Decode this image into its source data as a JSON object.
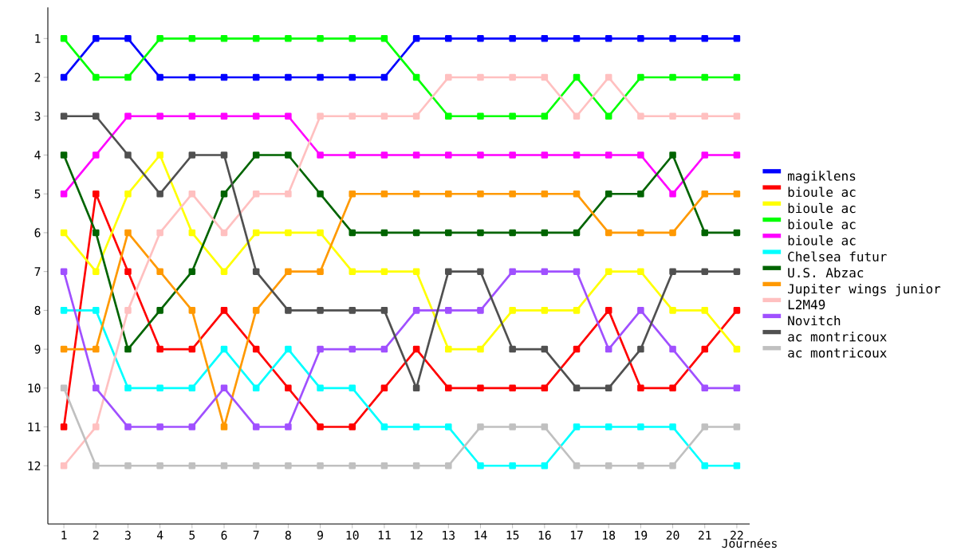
{
  "chart_data": {
    "type": "line",
    "xlabel": "Journées",
    "xlim": [
      0.5,
      22.4
    ],
    "ylim": [
      13.5,
      0.2
    ],
    "xticks": [
      1,
      2,
      3,
      4,
      5,
      6,
      7,
      8,
      9,
      10,
      11,
      12,
      13,
      14,
      15,
      16,
      17,
      18,
      19,
      20,
      21,
      22
    ],
    "yticks": [
      1,
      2,
      3,
      4,
      5,
      6,
      7,
      8,
      9,
      10,
      11,
      12
    ],
    "x": [
      1,
      2,
      3,
      4,
      5,
      6,
      7,
      8,
      9,
      10,
      11,
      12,
      13,
      14,
      15,
      16,
      17,
      18,
      19,
      20,
      21,
      22
    ],
    "marker": "square",
    "legend": "right",
    "grid": false,
    "series": [
      {
        "name": "magiklens",
        "color": "#0000ff",
        "values": [
          2,
          1,
          1,
          2,
          2,
          2,
          2,
          2,
          2,
          2,
          2,
          1,
          1,
          1,
          1,
          1,
          1,
          1,
          1,
          1,
          1,
          1
        ]
      },
      {
        "name": "bioule ac",
        "color": "#ff0000",
        "values": [
          11,
          5,
          7,
          9,
          9,
          8,
          9,
          10,
          11,
          11,
          10,
          9,
          10,
          10,
          10,
          10,
          9,
          8,
          10,
          10,
          9,
          8
        ]
      },
      {
        "name": "bioule ac",
        "color": "#ffff00",
        "values": [
          6,
          7,
          5,
          4,
          6,
          7,
          6,
          6,
          6,
          7,
          7,
          7,
          9,
          9,
          8,
          8,
          8,
          7,
          7,
          8,
          8,
          9
        ]
      },
      {
        "name": "bioule ac",
        "color": "#00ff00",
        "values": [
          1,
          2,
          2,
          1,
          1,
          1,
          1,
          1,
          1,
          1,
          1,
          2,
          3,
          3,
          3,
          3,
          2,
          3,
          2,
          2,
          2,
          2
        ]
      },
      {
        "name": "bioule ac",
        "color": "#ff00ff",
        "values": [
          5,
          4,
          3,
          3,
          3,
          3,
          3,
          3,
          4,
          4,
          4,
          4,
          4,
          4,
          4,
          4,
          4,
          4,
          4,
          5,
          4,
          4
        ]
      },
      {
        "name": "Chelsea futur",
        "color": "#00ffff",
        "values": [
          8,
          8,
          10,
          10,
          10,
          9,
          10,
          9,
          10,
          10,
          11,
          11,
          11,
          12,
          12,
          12,
          11,
          11,
          11,
          11,
          12,
          12
        ]
      },
      {
        "name": "U.S. Abzac",
        "color": "#006400",
        "values": [
          4,
          6,
          9,
          8,
          7,
          5,
          4,
          4,
          5,
          6,
          6,
          6,
          6,
          6,
          6,
          6,
          6,
          5,
          5,
          4,
          6,
          6
        ]
      },
      {
        "name": "Jupiter wings junior",
        "color": "#ff9900",
        "values": [
          9,
          9,
          6,
          7,
          8,
          11,
          8,
          7,
          7,
          5,
          5,
          5,
          5,
          5,
          5,
          5,
          5,
          6,
          6,
          6,
          5,
          5
        ]
      },
      {
        "name": "L2M49",
        "color": "#ffc0c0",
        "values": [
          12,
          11,
          8,
          6,
          5,
          6,
          5,
          5,
          3,
          3,
          3,
          3,
          2,
          2,
          2,
          2,
          3,
          2,
          3,
          3,
          3,
          3
        ]
      },
      {
        "name": "Novitch",
        "color": "#a050ff",
        "values": [
          7,
          10,
          11,
          11,
          11,
          10,
          11,
          11,
          9,
          9,
          9,
          8,
          8,
          8,
          7,
          7,
          7,
          9,
          8,
          9,
          10,
          10
        ]
      },
      {
        "name": "ac montricoux",
        "color": "#505050",
        "values": [
          3,
          3,
          4,
          5,
          4,
          4,
          7,
          8,
          8,
          8,
          8,
          10,
          7,
          7,
          9,
          9,
          10,
          10,
          9,
          7,
          7,
          7
        ]
      },
      {
        "name": "ac montricoux",
        "color": "#c0c0c0",
        "values": [
          10,
          12,
          12,
          12,
          12,
          12,
          12,
          12,
          12,
          12,
          12,
          12,
          12,
          11,
          11,
          11,
          12,
          12,
          12,
          12,
          11,
          11
        ]
      }
    ]
  }
}
